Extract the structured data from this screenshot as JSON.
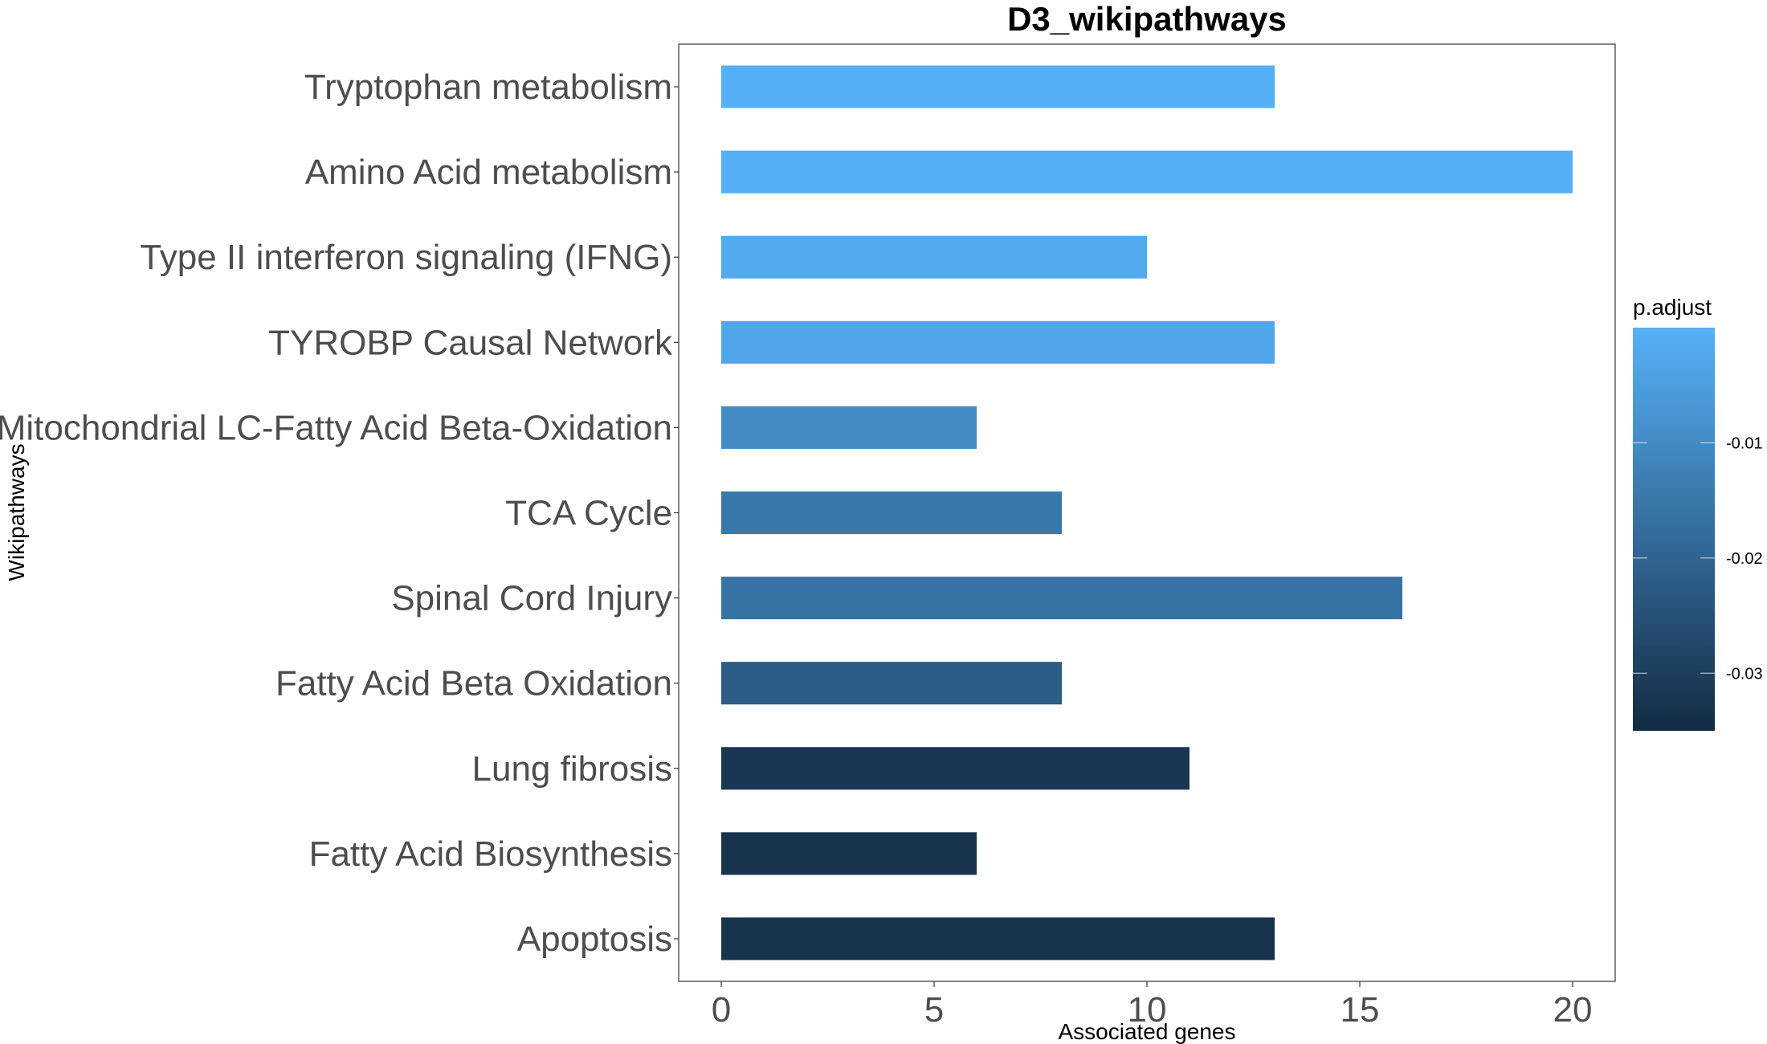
{
  "chart_data": {
    "type": "bar",
    "orientation": "horizontal",
    "title": "D3_wikipathways",
    "xlabel": "Associated genes",
    "ylabel": "Wikipathways",
    "xlim": [
      -1,
      21
    ],
    "x_ticks": [
      0,
      5,
      10,
      15,
      20
    ],
    "grid": false,
    "categories": [
      "Tryptophan metabolism",
      "Amino Acid metabolism",
      "Type II interferon signaling (IFNG)",
      "TYROBP Causal Network",
      "Mitochondrial LC-Fatty Acid Beta-Oxidation",
      "TCA Cycle",
      "Spinal Cord Injury",
      "Fatty Acid Beta Oxidation",
      "Lung fibrosis",
      "Fatty Acid Biosynthesis",
      "Apoptosis"
    ],
    "values": [
      13,
      20,
      10,
      13,
      6,
      8,
      16,
      8,
      11,
      6,
      13
    ],
    "p_adjust": [
      -0.0005,
      -0.0005,
      -0.002,
      -0.003,
      -0.01,
      -0.015,
      -0.016,
      -0.022,
      -0.032,
      -0.033,
      -0.033
    ],
    "legend": {
      "title": "p.adjust",
      "placement": "right",
      "ticks": [
        -0.01,
        -0.02,
        -0.03
      ],
      "tick_labels": [
        "-0.01",
        "-0.02",
        "-0.03"
      ],
      "range": [
        -0.035,
        0
      ],
      "color_low": "#132B43",
      "color_high": "#56B1F7"
    }
  }
}
